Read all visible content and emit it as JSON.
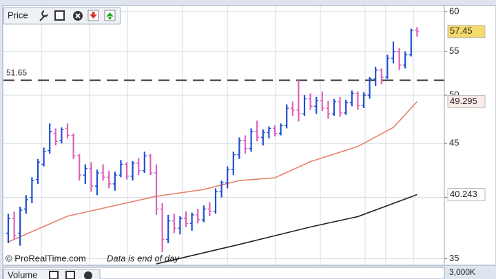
{
  "chart_data": {
    "type": "ohlc",
    "title": "Price",
    "open": [
      37.0,
      38.2,
      37.0,
      39.0,
      40.0,
      41.6,
      43.0,
      44.3,
      46.0,
      45.3,
      46.5,
      45.8,
      43.8,
      42.0,
      42.6,
      41.0,
      42.2,
      41.8,
      41.2,
      42.0,
      43.0,
      41.9,
      43.1,
      42.4,
      43.8,
      42.2,
      39.0,
      36.5,
      38.0,
      37.4,
      38.2,
      37.8,
      38.5,
      38.1,
      39.0,
      38.8,
      40.5,
      41.3,
      42.5,
      43.9,
      45.3,
      44.5,
      46.2,
      45.6,
      46.1,
      46.5,
      46.0,
      46.8,
      48.6,
      48.4,
      48.0,
      49.6,
      48.8,
      49.4,
      48.6,
      48.0,
      49.3,
      48.1,
      49.2,
      50.2,
      48.9,
      50.0,
      51.8,
      52.8,
      52.0,
      54.2,
      55.0,
      53.4,
      54.6,
      57.6
    ],
    "high": [
      38.6,
      38.8,
      39.2,
      40.2,
      41.8,
      43.5,
      44.6,
      47.0,
      46.5,
      46.6,
      47.0,
      46.0,
      44.0,
      43.0,
      43.2,
      42.5,
      43.0,
      42.4,
      42.3,
      43.4,
      43.2,
      43.3,
      43.6,
      44.2,
      44.0,
      43.0,
      39.5,
      38.5,
      38.6,
      38.4,
      38.8,
      38.7,
      39.0,
      39.3,
      39.6,
      40.8,
      41.5,
      42.8,
      44.2,
      45.6,
      45.8,
      46.5,
      47.3,
      46.4,
      46.7,
      46.8,
      47.0,
      49.0,
      49.3,
      51.8,
      50.0,
      50.2,
      49.8,
      50.4,
      49.4,
      49.6,
      49.8,
      49.5,
      50.5,
      50.4,
      50.3,
      52.0,
      53.2,
      53.0,
      54.6,
      56.2,
      55.4,
      55.0,
      57.8,
      58.0
    ],
    "low": [
      36.2,
      36.5,
      36.0,
      38.6,
      39.5,
      41.2,
      42.8,
      44.0,
      44.8,
      45.0,
      45.5,
      43.5,
      41.5,
      41.2,
      40.5,
      40.2,
      41.5,
      40.8,
      40.6,
      41.8,
      41.6,
      41.5,
      42.0,
      42.2,
      42.0,
      38.5,
      35.5,
      36.2,
      37.0,
      36.9,
      37.5,
      37.2,
      37.8,
      37.9,
      38.4,
      38.6,
      40.0,
      40.8,
      42.0,
      43.5,
      44.0,
      44.2,
      45.2,
      44.8,
      45.5,
      45.7,
      45.8,
      46.5,
      47.8,
      47.2,
      47.8,
      48.4,
      48.0,
      48.3,
      47.5,
      47.8,
      47.7,
      47.9,
      48.8,
      48.4,
      48.6,
      49.6,
      51.0,
      51.2,
      51.8,
      53.6,
      52.8,
      53.0,
      54.4,
      56.8
    ],
    "close": [
      38.2,
      36.8,
      38.9,
      39.8,
      41.5,
      43.2,
      44.2,
      46.2,
      45.2,
      46.4,
      45.8,
      43.8,
      42.0,
      42.6,
      41.0,
      42.2,
      41.8,
      41.2,
      42.0,
      43.0,
      41.9,
      43.1,
      42.4,
      43.8,
      42.2,
      39.0,
      36.5,
      38.0,
      37.4,
      38.2,
      37.8,
      38.5,
      38.1,
      39.0,
      38.8,
      40.5,
      41.3,
      42.5,
      43.9,
      45.3,
      44.5,
      46.2,
      45.6,
      46.1,
      46.5,
      46.0,
      46.8,
      48.6,
      48.4,
      48.0,
      49.6,
      48.8,
      49.4,
      48.6,
      48.0,
      49.3,
      48.1,
      49.2,
      50.2,
      48.9,
      50.0,
      51.8,
      52.8,
      52.0,
      54.2,
      55.0,
      53.4,
      54.6,
      57.6,
      57.45
    ],
    "up_color": "#1f4fd0",
    "down_color": "#e060b8",
    "ylim": [
      34.5,
      60.8
    ],
    "yticks": [
      35,
      40,
      45,
      50,
      55,
      60
    ],
    "log_scale": true,
    "grid": true,
    "lines": [
      {
        "color": "#e8806e",
        "x": [
          0,
          10,
          25,
          33,
          39,
          45,
          51,
          59,
          65,
          69
        ],
        "values": [
          36.3,
          38.4,
          40.1,
          40.7,
          41.5,
          41.75,
          43.25,
          44.7,
          46.6,
          49.295
        ]
      },
      {
        "color": "#222222",
        "x": [
          25,
          39,
          51,
          59,
          69
        ],
        "values": [
          34.6,
          36.1,
          37.5,
          38.36,
          40.243
        ]
      }
    ],
    "reference_line": 51.65
  },
  "volume_panel": {
    "title": "Volume",
    "yticks": [
      {
        "value": 3000000,
        "label": "3,000K"
      }
    ]
  },
  "watermark": {
    "source": "© ProRealTime.com",
    "note": "Data is end of day"
  }
}
